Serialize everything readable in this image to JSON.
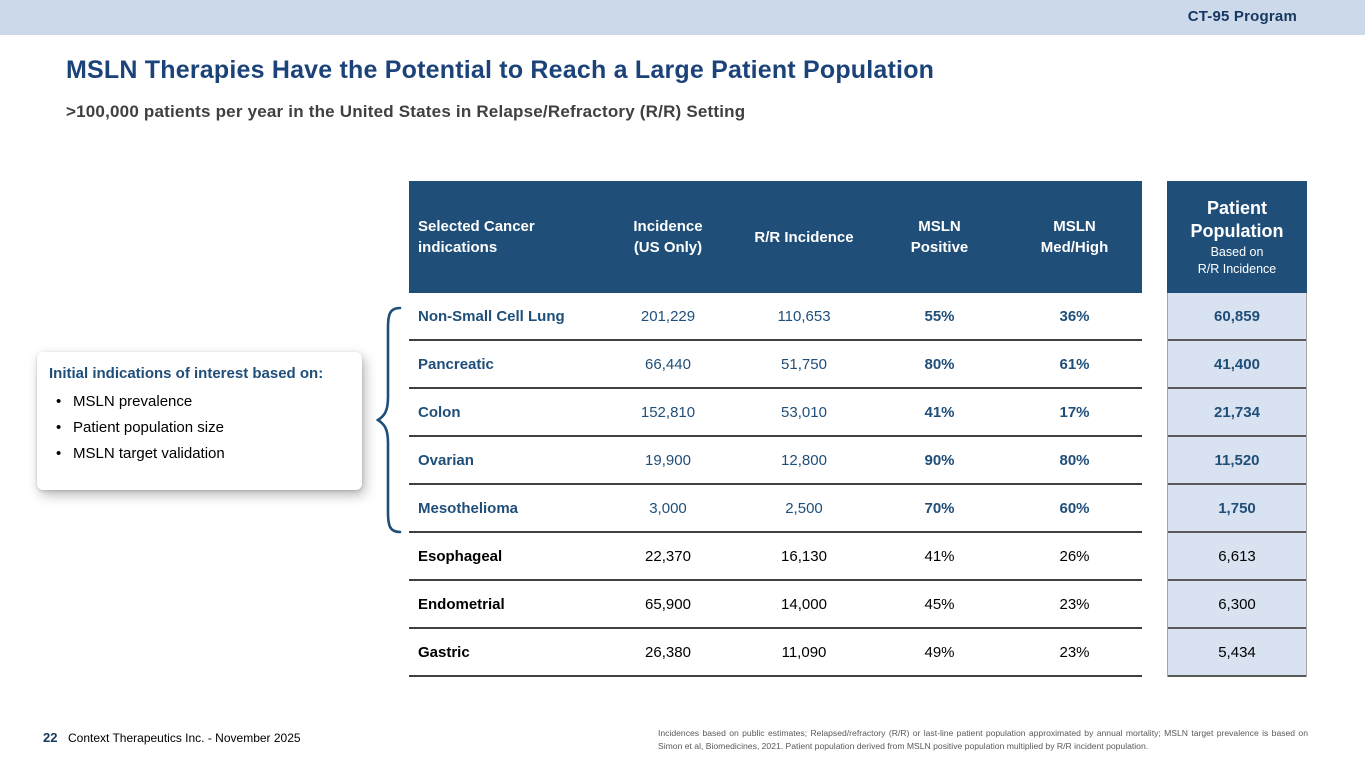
{
  "colors": {
    "accent": "#1F4E79",
    "top_band": "#CCD9EA",
    "population_cell_bg": "#D8E2F0",
    "row_divider": "#404040"
  },
  "top_bar": {
    "program": "CT-95 Program"
  },
  "title": "MSLN Therapies Have the Potential to Reach a Large Patient Population",
  "subtitle": ">100,000 patients per year in the United States in Relapse/Refractory (R/R) Setting",
  "callout": {
    "title": "Initial indications of interest based on:",
    "bullets": [
      "MSLN prevalence",
      "Patient population size",
      "MSLN target validation"
    ]
  },
  "table": {
    "headers": {
      "indication": "Selected Cancer\nindications",
      "incidence": "Incidence\n(US Only)",
      "rr": "R/R Incidence",
      "msln_positive": "MSLN\nPositive",
      "msln_med_high": "MSLN\nMed/High"
    },
    "population_header": {
      "title": "Patient\nPopulation",
      "subtitle": "Based on\nR/R Incidence"
    },
    "rows": [
      {
        "indication": "Non-Small Cell Lung",
        "incidence": "201,229",
        "rr": "110,653",
        "msln_positive": "55%",
        "msln_med_high": "36%",
        "population": "60,859",
        "highlight": true
      },
      {
        "indication": "Pancreatic",
        "incidence": "66,440",
        "rr": "51,750",
        "msln_positive": "80%",
        "msln_med_high": "61%",
        "population": "41,400",
        "highlight": true
      },
      {
        "indication": "Colon",
        "incidence": "152,810",
        "rr": "53,010",
        "msln_positive": "41%",
        "msln_med_high": "17%",
        "population": "21,734",
        "highlight": true
      },
      {
        "indication": "Ovarian",
        "incidence": "19,900",
        "rr": "12,800",
        "msln_positive": "90%",
        "msln_med_high": "80%",
        "population": "11,520",
        "highlight": true
      },
      {
        "indication": "Mesothelioma",
        "incidence": "3,000",
        "rr": "2,500",
        "msln_positive": "70%",
        "msln_med_high": "60%",
        "population": "1,750",
        "highlight": true
      },
      {
        "indication": "Esophageal",
        "incidence": "22,370",
        "rr": "16,130",
        "msln_positive": "41%",
        "msln_med_high": "26%",
        "population": "6,613",
        "highlight": false
      },
      {
        "indication": "Endometrial",
        "incidence": "65,900",
        "rr": "14,000",
        "msln_positive": "45%",
        "msln_med_high": "23%",
        "population": "6,300",
        "highlight": false
      },
      {
        "indication": "Gastric",
        "incidence": "26,380",
        "rr": "11,090",
        "msln_positive": "49%",
        "msln_med_high": "23%",
        "population": "5,434",
        "highlight": false
      }
    ]
  },
  "footer": {
    "page_number": "22",
    "credit": "Context Therapeutics Inc. - November 2025",
    "footnote": "Incidences based on public estimates; Relapsed/refractory (R/R) or last-line patient population approximated by annual mortality; MSLN target prevalence is based on Simon et al, Biomedicines, 2021. Patient population derived from MSLN positive population multiplied by R/R incident population."
  }
}
